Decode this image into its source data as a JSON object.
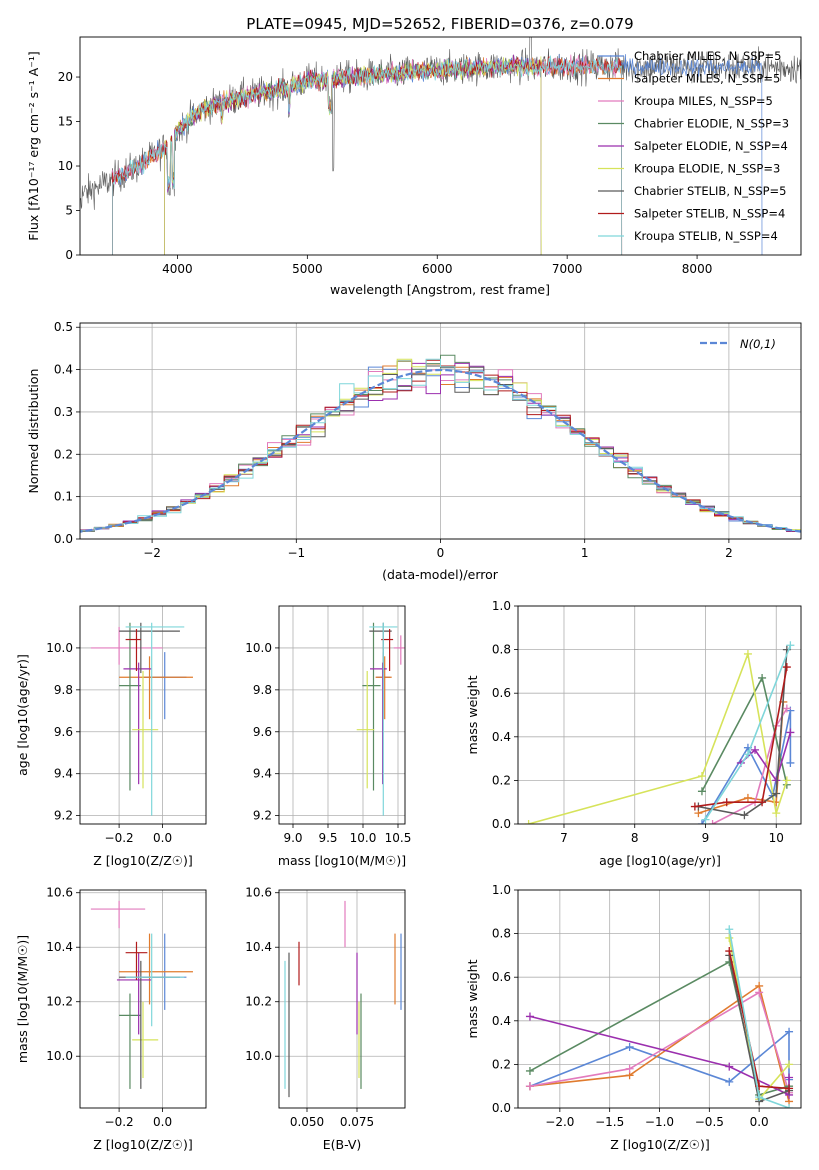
{
  "colors": [
    "#5b87d6",
    "#e07b2e",
    "#e27bbd",
    "#5a8a62",
    "#9b2fae",
    "#d6e35a",
    "#5a5a5a",
    "#b11b1b",
    "#7fd6da"
  ],
  "chart_data": [
    {
      "type": "line",
      "title": "PLATE=0945, MJD=52652, FIBERID=0376, z=0.079",
      "xlabel": "wavelength [Angstrom, rest frame]",
      "ylabel": "Flux [fλ10⁻¹⁷ erg cm⁻² s⁻¹ A⁻¹]",
      "xlim": [
        3250,
        8800
      ],
      "ylim": [
        0,
        24.5
      ],
      "xticks": [
        4000,
        5000,
        6000,
        7000,
        8000
      ],
      "yticks": [
        0,
        5,
        10,
        15,
        20
      ],
      "grid": false,
      "legend_position": "top-right",
      "series": [
        {
          "name": "Chabrier MILES, N_SSP=5"
        },
        {
          "name": "Salpeter MILES, N_SSP=5"
        },
        {
          "name": "Kroupa MILES, N_SSP=5"
        },
        {
          "name": "Chabrier ELODIE, N_SSP=3"
        },
        {
          "name": "Salpeter ELODIE, N_SSP=4"
        },
        {
          "name": "Kroupa ELODIE, N_SSP=3"
        },
        {
          "name": "Chabrier STELIB, N_SSP=5"
        },
        {
          "name": "Salpeter STELIB, N_SSP=4"
        },
        {
          "name": "Kroupa STELIB, N_SSP=4"
        }
      ],
      "continuum": {
        "x": [
          3500,
          3700,
          3900,
          4000,
          4200,
          4500,
          4800,
          5000,
          5500,
          6000,
          6500,
          7000,
          7500,
          8000,
          8400
        ],
        "y": [
          8.5,
          10,
          12,
          14,
          16.5,
          17.8,
          18.6,
          19.6,
          20.2,
          20.8,
          21.2,
          21.2,
          21.2,
          21.1,
          21.1
        ]
      },
      "model_ranges": [
        [
          3500,
          8500
        ],
        [
          3500,
          7420
        ],
        [
          3500,
          7420
        ],
        [
          3900,
          6800
        ],
        [
          3900,
          6800
        ],
        [
          3900,
          6800
        ],
        [
          3200,
          9300
        ],
        [
          3500,
          7420
        ],
        [
          3500,
          7420
        ]
      ]
    },
    {
      "type": "histogram",
      "xlabel": "(data-model)/error",
      "ylabel": "Normed distribution",
      "xlim": [
        -2.5,
        2.5
      ],
      "ylim": [
        0,
        0.51
      ],
      "xticks": [
        -2,
        -1,
        0,
        1,
        2
      ],
      "yticks": [
        0.0,
        0.1,
        0.2,
        0.3,
        0.4,
        0.5
      ],
      "grid": true,
      "legend_position": "top-right",
      "reference": {
        "name": "N(0,1)",
        "mu": 0,
        "sigma": 1
      }
    },
    {
      "type": "scatter",
      "xlabel": "Z [log10(Z/Z☉)]",
      "ylabel": "age [log10(age/yr)]",
      "xlim": [
        -0.38,
        0.2
      ],
      "ylim": [
        9.16,
        10.2
      ],
      "xticks": [
        -0.2,
        0.0
      ],
      "yticks": [
        9.2,
        9.4,
        9.6,
        9.8,
        10.0
      ],
      "grid": true,
      "points": [
        {
          "x": 0.01,
          "y": 9.86,
          "xerr": [
            0.1,
            0.1
          ],
          "yerr": [
            0.2,
            0.12
          ],
          "color": 0
        },
        {
          "x": -0.06,
          "y": 9.86,
          "xerr": [
            0.14,
            0.2
          ],
          "yerr": [
            0.2,
            0.1
          ],
          "color": 1
        },
        {
          "x": -0.2,
          "y": 10.0,
          "xerr": [
            0.13,
            0.2
          ],
          "yerr": [
            0.08,
            0.1
          ],
          "color": 2
        },
        {
          "x": -0.15,
          "y": 9.82,
          "xerr": [
            0.05,
            0.05
          ],
          "yerr": [
            0.5,
            0.3
          ],
          "color": 3
        },
        {
          "x": -0.11,
          "y": 9.9,
          "xerr": [
            0.07,
            0.06
          ],
          "yerr": [
            0.55,
            0.03
          ],
          "color": 4
        },
        {
          "x": -0.09,
          "y": 9.61,
          "xerr": [
            0.05,
            0.07
          ],
          "yerr": [
            0.28,
            0.28
          ],
          "color": 5
        },
        {
          "x": -0.1,
          "y": 10.08,
          "xerr": [
            0.1,
            0.18
          ],
          "yerr": [
            0.2,
            0.04
          ],
          "color": 6
        },
        {
          "x": -0.12,
          "y": 10.04,
          "xerr": [
            0.05,
            0.02
          ],
          "yerr": [
            0.15,
            0.05
          ],
          "color": 7
        },
        {
          "x": -0.05,
          "y": 10.1,
          "xerr": [
            0.12,
            0.15
          ],
          "yerr": [
            0.9,
            0.02
          ],
          "color": 8
        }
      ]
    },
    {
      "type": "scatter",
      "xlabel": "mass [log10(M/M☉)]",
      "xlim": [
        8.8,
        10.6
      ],
      "ylim": [
        9.16,
        10.2
      ],
      "xticks": [
        9.0,
        9.5,
        10.0,
        10.5
      ],
      "yticks": [
        9.2,
        9.4,
        9.6,
        9.8,
        10.0
      ],
      "grid": true,
      "points": [
        {
          "x": 10.29,
          "y": 9.86,
          "xerr": [
            0.1,
            0.1
          ],
          "yerr": [
            0.2,
            0.12
          ],
          "color": 0
        },
        {
          "x": 10.31,
          "y": 9.86,
          "xerr": [
            0.13,
            0.1
          ],
          "yerr": [
            0.2,
            0.1
          ],
          "color": 1
        },
        {
          "x": 10.54,
          "y": 10.0,
          "xerr": [
            0.1,
            0.05
          ],
          "yerr": [
            0.08,
            0.06
          ],
          "color": 2
        },
        {
          "x": 10.15,
          "y": 9.82,
          "xerr": [
            0.16,
            0.1
          ],
          "yerr": [
            0.5,
            0.3
          ],
          "color": 3
        },
        {
          "x": 10.28,
          "y": 9.9,
          "xerr": [
            0.18,
            0.06
          ],
          "yerr": [
            0.55,
            0.03
          ],
          "color": 4
        },
        {
          "x": 10.06,
          "y": 9.61,
          "xerr": [
            0.15,
            0.1
          ],
          "yerr": [
            0.28,
            0.28
          ],
          "color": 5
        },
        {
          "x": 10.29,
          "y": 10.08,
          "xerr": [
            0.2,
            0.12
          ],
          "yerr": [
            0.2,
            0.04
          ],
          "color": 6
        },
        {
          "x": 10.38,
          "y": 10.04,
          "xerr": [
            0.12,
            0.05
          ],
          "yerr": [
            0.15,
            0.05
          ],
          "color": 7
        },
        {
          "x": 10.29,
          "y": 10.1,
          "xerr": [
            0.2,
            0.2
          ],
          "yerr": [
            0.9,
            0.02
          ],
          "color": 8
        }
      ]
    },
    {
      "type": "line",
      "xlabel": "age [log10(age/yr)]",
      "ylabel": "mass weight",
      "xlim": [
        6.35,
        10.35
      ],
      "ylim": [
        0.0,
        1.0
      ],
      "xticks": [
        7,
        8,
        9,
        10
      ],
      "yticks": [
        0.0,
        0.2,
        0.4,
        0.6,
        0.8,
        1.0
      ],
      "grid": true,
      "series": [
        {
          "color": 0,
          "x": [
            8.95,
            9.6,
            9.95,
            10.2,
            10.2
          ],
          "y": [
            0.0,
            0.35,
            0.13,
            0.52,
            0.28
          ]
        },
        {
          "color": 1,
          "x": [
            8.9,
            9.6,
            10.0,
            10.1
          ],
          "y": [
            0.05,
            0.12,
            0.1,
            0.56
          ]
        },
        {
          "color": 2,
          "x": [
            9.1,
            9.7,
            10.0,
            10.15
          ],
          "y": [
            0.0,
            0.1,
            0.45,
            0.53
          ]
        },
        {
          "color": 3,
          "x": [
            8.95,
            9.8,
            10.15
          ],
          "y": [
            0.15,
            0.67,
            0.18
          ]
        },
        {
          "color": 4,
          "x": [
            9.5,
            9.7,
            10.0,
            10.2
          ],
          "y": [
            0.28,
            0.34,
            0.2,
            0.42
          ]
        },
        {
          "color": 5,
          "x": [
            6.5,
            8.95,
            9.6,
            10.0,
            10.15
          ],
          "y": [
            0.0,
            0.22,
            0.78,
            0.05,
            0.2
          ]
        },
        {
          "color": 6,
          "x": [
            8.9,
            9.55,
            10.0,
            10.15
          ],
          "y": [
            0.08,
            0.04,
            0.14,
            0.8
          ]
        },
        {
          "color": 7,
          "x": [
            8.85,
            9.3,
            9.8,
            10.15
          ],
          "y": [
            0.08,
            0.1,
            0.1,
            0.72
          ]
        },
        {
          "color": 8,
          "x": [
            9.0,
            9.6,
            10.2
          ],
          "y": [
            0.02,
            0.32,
            0.82
          ]
        }
      ]
    },
    {
      "type": "scatter",
      "xlabel": "Z [log10(Z/Z☉)]",
      "ylabel": "mass [log10(M/M☉)]",
      "xlim": [
        -0.38,
        0.2
      ],
      "ylim": [
        9.81,
        10.61
      ],
      "xticks": [
        -0.2,
        0.0
      ],
      "yticks": [
        10.0,
        10.2,
        10.4,
        10.6
      ],
      "grid": true,
      "points": [
        {
          "x": 0.01,
          "y": 10.29,
          "xerr": [
            0.1,
            0.1
          ],
          "yerr": [
            0.12,
            0.16
          ],
          "color": 0
        },
        {
          "x": -0.06,
          "y": 10.31,
          "xerr": [
            0.14,
            0.2
          ],
          "yerr": [
            0.12,
            0.14
          ],
          "color": 1
        },
        {
          "x": -0.2,
          "y": 10.54,
          "xerr": [
            0.13,
            0.12
          ],
          "yerr": [
            0.07,
            0.03
          ],
          "color": 2
        },
        {
          "x": -0.15,
          "y": 10.15,
          "xerr": [
            0.05,
            0.05
          ],
          "yerr": [
            0.27,
            0.08
          ],
          "color": 3
        },
        {
          "x": -0.11,
          "y": 10.28,
          "xerr": [
            0.1,
            0.06
          ],
          "yerr": [
            0.2,
            0.1
          ],
          "color": 4
        },
        {
          "x": -0.09,
          "y": 10.06,
          "xerr": [
            0.05,
            0.07
          ],
          "yerr": [
            0.14,
            0.14
          ],
          "color": 5
        },
        {
          "x": -0.1,
          "y": 10.29,
          "xerr": [
            0.1,
            0.18
          ],
          "yerr": [
            0.41,
            0.06
          ],
          "color": 6
        },
        {
          "x": -0.12,
          "y": 10.38,
          "xerr": [
            0.05,
            0.05
          ],
          "yerr": [
            0.1,
            0.04
          ],
          "color": 7
        },
        {
          "x": -0.05,
          "y": 10.29,
          "xerr": [
            0.12,
            0.15
          ],
          "yerr": [
            0.18,
            0.16
          ],
          "color": 8
        }
      ]
    },
    {
      "type": "scatter",
      "xlabel": "E(B-V)",
      "xlim": [
        0.036,
        0.099
      ],
      "ylim": [
        9.81,
        10.61
      ],
      "xticks": [
        0.05,
        0.075
      ],
      "yticks": [
        10.0,
        10.2,
        10.4,
        10.6
      ],
      "grid": true,
      "points": [
        {
          "x": 0.097,
          "y": 10.29,
          "yerr": [
            0.12,
            0.16
          ],
          "color": 0
        },
        {
          "x": 0.094,
          "y": 10.31,
          "yerr": [
            0.12,
            0.14
          ],
          "color": 1
        },
        {
          "x": 0.069,
          "y": 10.5,
          "yerr": [
            0.1,
            0.07
          ],
          "color": 2
        },
        {
          "x": 0.077,
          "y": 10.15,
          "yerr": [
            0.27,
            0.08
          ],
          "color": 3
        },
        {
          "x": 0.075,
          "y": 10.28,
          "yerr": [
            0.2,
            0.1
          ],
          "color": 4
        },
        {
          "x": 0.076,
          "y": 10.06,
          "yerr": [
            0.14,
            0.14
          ],
          "color": 5
        },
        {
          "x": 0.041,
          "y": 10.13,
          "yerr": [
            0.28,
            0.25
          ],
          "color": 6
        },
        {
          "x": 0.046,
          "y": 10.34,
          "yerr": [
            0.08,
            0.08
          ],
          "color": 7
        },
        {
          "x": 0.039,
          "y": 10.11,
          "yerr": [
            0.23,
            0.24
          ],
          "color": 8
        }
      ]
    },
    {
      "type": "line",
      "xlabel": "Z [log10(Z/Z☉)]",
      "ylabel": "mass weight",
      "xlim": [
        -2.42,
        0.42
      ],
      "ylim": [
        0.0,
        1.0
      ],
      "xticks": [
        -2.0,
        -1.5,
        -1.0,
        -0.5,
        0.0
      ],
      "yticks": [
        0.0,
        0.2,
        0.4,
        0.6,
        0.8,
        1.0
      ],
      "grid": true,
      "series": [
        {
          "color": 0,
          "x": [
            -2.3,
            -1.3,
            -0.3,
            0.3,
            0.3
          ],
          "y": [
            0.1,
            0.28,
            0.12,
            0.35,
            0.13
          ]
        },
        {
          "color": 1,
          "x": [
            -2.3,
            -1.3,
            0.0,
            0.3
          ],
          "y": [
            0.1,
            0.15,
            0.56,
            0.03
          ]
        },
        {
          "color": 2,
          "x": [
            -2.3,
            -1.3,
            0.0,
            0.3
          ],
          "y": [
            0.1,
            0.18,
            0.53,
            0.07
          ]
        },
        {
          "color": 3,
          "x": [
            -2.3,
            -0.3,
            0.0,
            0.3
          ],
          "y": [
            0.17,
            0.67,
            0.06,
            0.1
          ]
        },
        {
          "color": 4,
          "x": [
            -2.3,
            -0.3,
            0.3,
            0.3
          ],
          "y": [
            0.42,
            0.19,
            0.06,
            0.14
          ]
        },
        {
          "color": 5,
          "x": [
            -0.3,
            0.0,
            0.3
          ],
          "y": [
            0.78,
            0.04,
            0.2
          ]
        },
        {
          "color": 6,
          "x": [
            -0.3,
            0.0,
            0.3
          ],
          "y": [
            0.7,
            0.03,
            0.08
          ]
        },
        {
          "color": 7,
          "x": [
            -0.3,
            0.0,
            0.3
          ],
          "y": [
            0.72,
            0.1,
            0.09
          ]
        },
        {
          "color": 8,
          "x": [
            -0.3,
            0.0,
            0.3
          ],
          "y": [
            0.82,
            0.05,
            0.0
          ]
        }
      ]
    }
  ]
}
